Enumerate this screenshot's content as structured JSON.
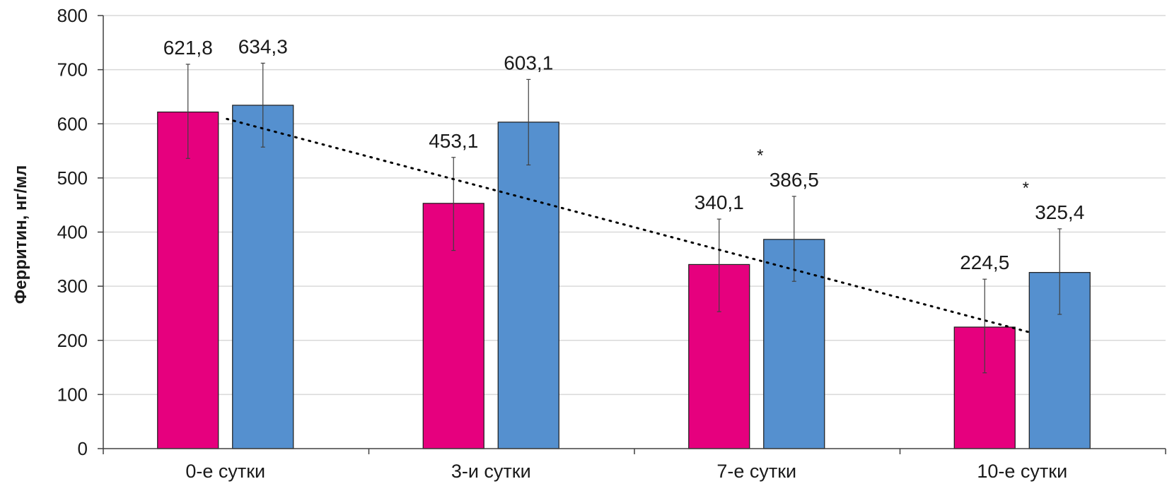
{
  "chart_data": {
    "type": "bar",
    "ylabel": "Ферритин, нг/мл",
    "xlabel": "",
    "ylim": [
      0,
      800
    ],
    "yticks": [
      "0",
      "100",
      "200",
      "300",
      "400",
      "500",
      "600",
      "700",
      "800"
    ],
    "categories": [
      "0-е сутки",
      "3-и сутки",
      "7-е сутки",
      "10-е сутки"
    ],
    "grid": true,
    "legend": "none",
    "series": [
      {
        "values": [
          621.8,
          453.1,
          340.1,
          224.5
        ],
        "labels": [
          "621,8",
          "453,1",
          "340,1",
          "224,5"
        ],
        "error_low": [
          536,
          366,
          253,
          140
        ],
        "error_high": [
          710,
          538,
          424,
          313
        ],
        "color": "#e6007e"
      },
      {
        "values": [
          634.3,
          603.1,
          386.5,
          325.4
        ],
        "labels": [
          "634,3",
          "603,1",
          "386,5",
          "325,4"
        ],
        "error_low": [
          557,
          524,
          309,
          248
        ],
        "error_high": [
          712,
          682,
          466,
          406
        ],
        "color": "#5590cf"
      }
    ],
    "annotations": [
      {
        "text": "*",
        "category_index": 2
      },
      {
        "text": "*",
        "category_index": 3
      }
    ],
    "trendline": {
      "style": "dotted",
      "color": "#000000",
      "from": 609,
      "to": 214
    }
  }
}
